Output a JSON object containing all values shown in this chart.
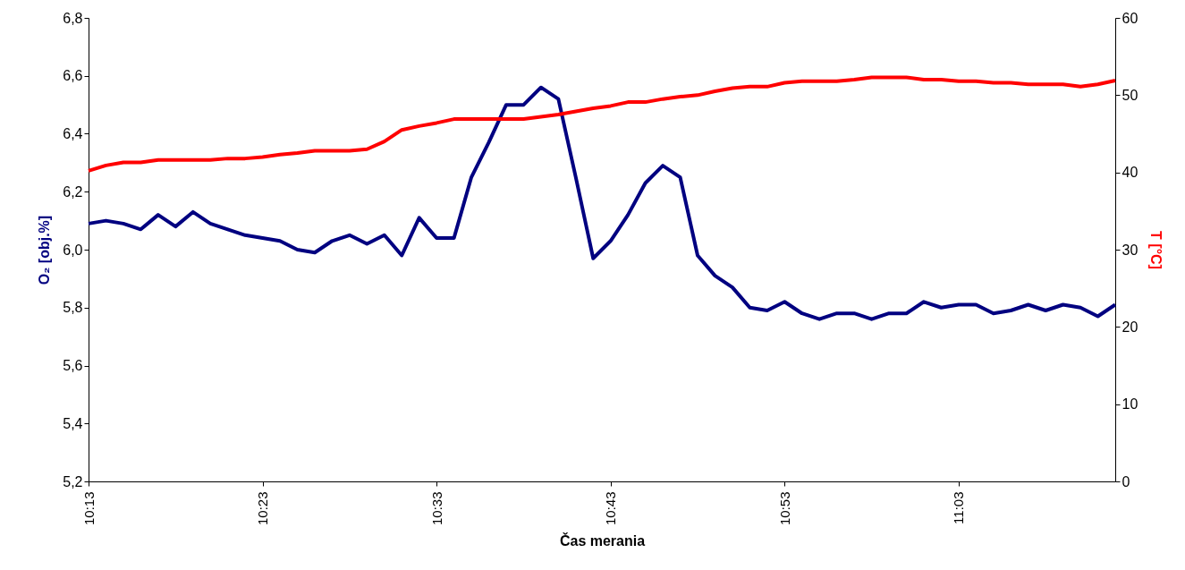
{
  "chart_data": {
    "type": "line",
    "xlabel": "Čas merania",
    "ylabel": "O₂ [obj.%]",
    "y2label": "T [°C]",
    "categories": [
      "10:13",
      null,
      null,
      null,
      null,
      null,
      null,
      null,
      null,
      null,
      "10:23",
      null,
      null,
      null,
      null,
      null,
      null,
      null,
      null,
      null,
      "10:33",
      null,
      null,
      null,
      null,
      null,
      null,
      null,
      null,
      null,
      "10:43",
      null,
      null,
      null,
      null,
      null,
      null,
      null,
      null,
      null,
      "10:53",
      null,
      null,
      null,
      null,
      null,
      null,
      null,
      null,
      null,
      "11:03",
      null,
      null,
      null,
      null,
      null,
      null,
      null,
      null,
      null
    ],
    "series": [
      {
        "color": "#000080",
        "values": [
          6.09,
          6.1,
          6.09,
          6.07,
          6.12,
          6.08,
          6.13,
          6.09,
          6.07,
          6.05,
          6.04,
          6.03,
          6.0,
          5.99,
          6.03,
          6.05,
          6.02,
          6.05,
          5.98,
          6.11,
          6.04,
          6.04,
          6.25,
          6.37,
          6.5,
          6.5,
          6.56,
          6.52,
          6.25,
          5.97,
          6.03,
          6.12,
          6.23,
          6.29,
          6.25,
          5.98,
          5.91,
          5.87,
          5.8,
          5.79,
          5.82,
          5.78,
          5.76,
          5.78,
          5.78,
          5.76,
          5.78,
          5.78,
          5.82,
          5.8,
          5.81,
          5.81,
          5.78,
          5.79,
          5.81,
          5.79,
          5.81,
          5.8,
          5.77,
          5.81
        ]
      },
      {
        "color": "#ff0000",
        "axis": "y2",
        "values": [
          40.2,
          40.9,
          41.3,
          41.3,
          41.6,
          41.6,
          41.6,
          41.6,
          41.8,
          41.8,
          42.0,
          42.3,
          42.5,
          42.8,
          42.8,
          42.8,
          43.0,
          44.0,
          45.5,
          46.0,
          46.4,
          46.9,
          46.9,
          46.9,
          46.9,
          46.9,
          47.2,
          47.5,
          47.9,
          48.3,
          48.6,
          49.1,
          49.1,
          49.5,
          49.8,
          50.0,
          50.5,
          50.9,
          51.1,
          51.1,
          51.6,
          51.8,
          51.8,
          51.8,
          52.0,
          52.3,
          52.3,
          52.3,
          52.0,
          52.0,
          51.8,
          51.8,
          51.6,
          51.6,
          51.4,
          51.4,
          51.4,
          51.1,
          51.4,
          51.9
        ]
      }
    ],
    "ylim": [
      5.2,
      6.8
    ],
    "yticks": [
      {
        "value": 5.2,
        "label": "5,2"
      },
      {
        "value": 5.4,
        "label": "5,4"
      },
      {
        "value": 5.6,
        "label": "5,6"
      },
      {
        "value": 5.8,
        "label": "5,8"
      },
      {
        "value": 6.0,
        "label": "6,0"
      },
      {
        "value": 6.2,
        "label": "6,2"
      },
      {
        "value": 6.4,
        "label": "6,4"
      },
      {
        "value": 6.6,
        "label": "6,6"
      },
      {
        "value": 6.8,
        "label": "6,8"
      }
    ],
    "y2lim": [
      0,
      60
    ],
    "y2ticks": [
      0,
      10,
      20,
      30,
      40,
      50,
      60
    ],
    "line_style": "solid",
    "grid": false
  }
}
